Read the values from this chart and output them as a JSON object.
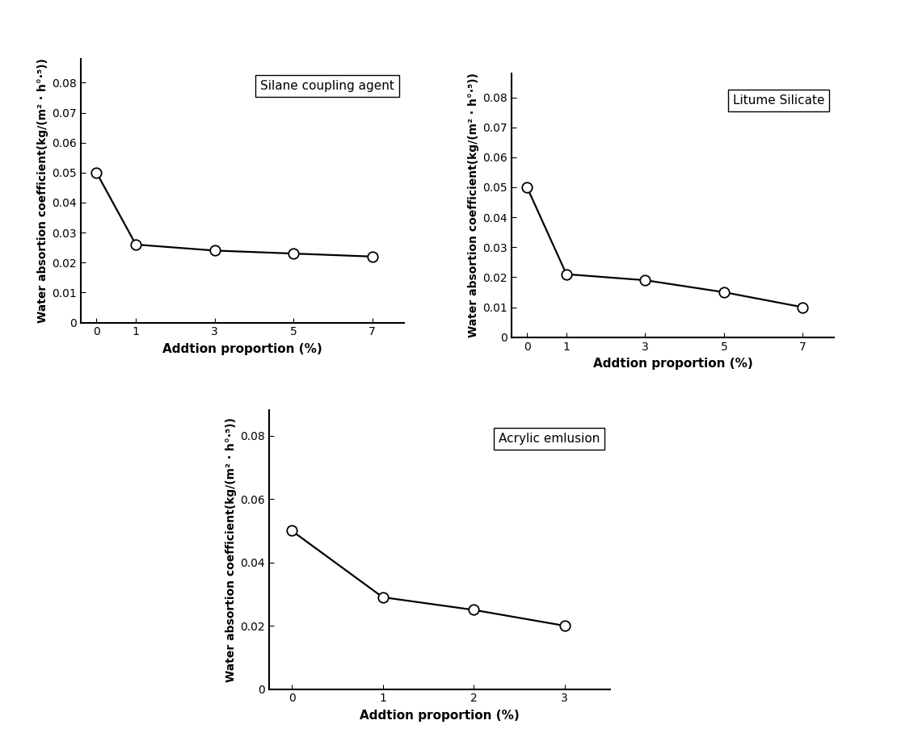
{
  "subplot1": {
    "title": "Silane coupling agent",
    "x": [
      0,
      1,
      3,
      5,
      7
    ],
    "y": [
      0.05,
      0.026,
      0.024,
      0.023,
      0.022
    ],
    "ylim": [
      0,
      0.088
    ],
    "yticks": [
      0,
      0.01,
      0.02,
      0.03,
      0.04,
      0.05,
      0.06,
      0.07,
      0.08
    ],
    "ytick_labels": [
      "0",
      "0.01",
      "0.02",
      "0.03",
      "0.04",
      "0.05",
      "0.06",
      "0.07",
      "0.08"
    ],
    "xticks": [
      0,
      1,
      3,
      5,
      7
    ],
    "xlim": [
      -0.4,
      7.8
    ]
  },
  "subplot2": {
    "title": "Litume Silicate",
    "x": [
      0,
      1,
      3,
      5,
      7
    ],
    "y": [
      0.05,
      0.021,
      0.019,
      0.015,
      0.01
    ],
    "ylim": [
      0,
      0.088
    ],
    "yticks": [
      0,
      0.01,
      0.02,
      0.03,
      0.04,
      0.05,
      0.06,
      0.07,
      0.08
    ],
    "ytick_labels": [
      "0",
      "0.01",
      "0.02",
      "0.03",
      "0.04",
      "0.05",
      "0.06",
      "0.07",
      "0.08"
    ],
    "xticks": [
      0,
      1,
      3,
      5,
      7
    ],
    "xlim": [
      -0.4,
      7.8
    ]
  },
  "subplot3": {
    "title": "Acrylic emlusion",
    "x": [
      0,
      1,
      2,
      3
    ],
    "y": [
      0.05,
      0.029,
      0.025,
      0.02
    ],
    "ylim": [
      0,
      0.088
    ],
    "yticks": [
      0,
      0.02,
      0.04,
      0.06,
      0.08
    ],
    "ytick_labels": [
      "0",
      "0.02",
      "0.04",
      "0.06",
      "0.08"
    ],
    "xticks": [
      0,
      1,
      2,
      3
    ],
    "xlim": [
      -0.25,
      3.5
    ]
  },
  "xlabel_text": "Addtion proportion (%)",
  "ylabel_text": "Water absortion coefficient(kg/(m² · h°·⁵))",
  "line_color": "#000000",
  "marker": "o",
  "marker_facecolor": "#ffffff",
  "marker_edgecolor": "#000000",
  "marker_size": 9,
  "linewidth": 1.6,
  "background_color": "#ffffff",
  "tick_fontsize": 10,
  "label_fontsize": 10,
  "legend_fontsize": 11
}
